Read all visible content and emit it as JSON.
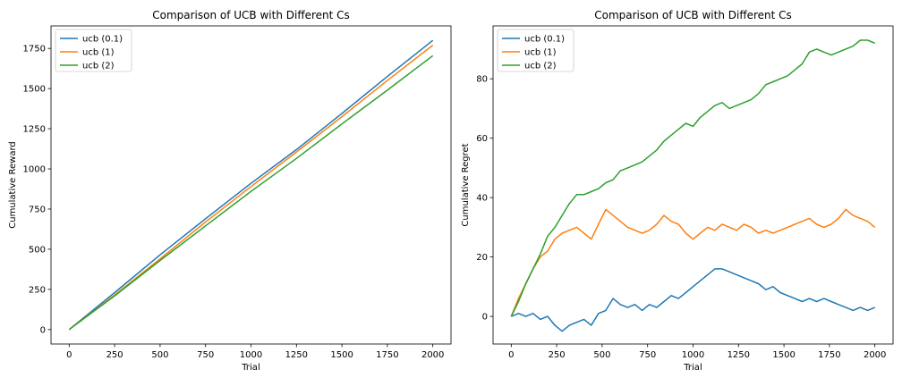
{
  "chart_data": [
    {
      "type": "line",
      "title": "Comparison of UCB with Different Cs",
      "xlabel": "Trial",
      "ylabel": "Cumulative Reward",
      "xlim": [
        -100,
        2100
      ],
      "ylim": [
        -90,
        1890
      ],
      "xticks": [
        0,
        250,
        500,
        750,
        1000,
        1250,
        1500,
        1750,
        2000
      ],
      "yticks": [
        0,
        250,
        500,
        750,
        1000,
        1250,
        1500,
        1750
      ],
      "legend_location": "upper left",
      "grid": false,
      "series": [
        {
          "name": "ucb (0.1)",
          "color": "#1f77b4",
          "x": [
            0,
            250,
            500,
            750,
            1000,
            1250,
            1500,
            1750,
            2000
          ],
          "y": [
            0,
            230,
            465,
            690,
            910,
            1120,
            1345,
            1575,
            1800
          ]
        },
        {
          "name": "ucb (1)",
          "color": "#ff7f0e",
          "x": [
            0,
            250,
            500,
            750,
            1000,
            1250,
            1500,
            1750,
            2000
          ],
          "y": [
            0,
            215,
            440,
            670,
            890,
            1105,
            1325,
            1550,
            1770
          ]
        },
        {
          "name": "ucb (2)",
          "color": "#2ca02c",
          "x": [
            0,
            250,
            500,
            750,
            1000,
            1250,
            1500,
            1750,
            2000
          ],
          "y": [
            0,
            210,
            430,
            645,
            860,
            1065,
            1280,
            1490,
            1705
          ]
        }
      ]
    },
    {
      "type": "line",
      "title": "Comparison of UCB with Different Cs",
      "xlabel": "Trial",
      "ylabel": "Cumulative Regret",
      "xlim": [
        -100,
        2100
      ],
      "ylim": [
        -9.3,
        97.8
      ],
      "xticks": [
        0,
        250,
        500,
        750,
        1000,
        1250,
        1500,
        1750,
        2000
      ],
      "yticks": [
        0,
        20,
        40,
        60,
        80
      ],
      "legend_location": "upper left",
      "grid": false,
      "series": [
        {
          "name": "ucb (0.1)",
          "color": "#1f77b4",
          "x": [
            0,
            40,
            80,
            120,
            160,
            200,
            240,
            280,
            320,
            360,
            400,
            440,
            480,
            520,
            560,
            600,
            640,
            680,
            720,
            760,
            800,
            840,
            880,
            920,
            960,
            1000,
            1040,
            1080,
            1120,
            1160,
            1200,
            1240,
            1280,
            1320,
            1360,
            1400,
            1440,
            1480,
            1520,
            1560,
            1600,
            1640,
            1680,
            1720,
            1760,
            1800,
            1840,
            1880,
            1920,
            1960,
            2000
          ],
          "y": [
            0,
            1,
            0,
            1,
            -1,
            0,
            -3,
            -5,
            -3,
            -2,
            -1,
            -3,
            1,
            2,
            6,
            4,
            3,
            4,
            2,
            4,
            3,
            5,
            7,
            6,
            8,
            10,
            12,
            14,
            16,
            16,
            15,
            14,
            13,
            12,
            11,
            9,
            10,
            8,
            7,
            6,
            5,
            6,
            5,
            6,
            5,
            4,
            3,
            2,
            3,
            2,
            3
          ]
        },
        {
          "name": "ucb (1)",
          "color": "#ff7f0e",
          "x": [
            0,
            40,
            80,
            120,
            160,
            200,
            240,
            280,
            320,
            360,
            400,
            440,
            480,
            520,
            560,
            600,
            640,
            680,
            720,
            760,
            800,
            840,
            880,
            920,
            960,
            1000,
            1040,
            1080,
            1120,
            1160,
            1200,
            1240,
            1280,
            1320,
            1360,
            1400,
            1440,
            1480,
            1520,
            1560,
            1600,
            1640,
            1680,
            1720,
            1760,
            1800,
            1840,
            1880,
            1920,
            1960,
            2000
          ],
          "y": [
            0,
            6,
            11,
            16,
            20,
            22,
            26,
            28,
            29,
            30,
            28,
            26,
            31,
            36,
            34,
            32,
            30,
            29,
            28,
            29,
            31,
            34,
            32,
            31,
            28,
            26,
            28,
            30,
            29,
            31,
            30,
            29,
            31,
            30,
            28,
            29,
            28,
            29,
            30,
            31,
            32,
            33,
            31,
            30,
            31,
            33,
            36,
            34,
            33,
            32,
            30
          ]
        },
        {
          "name": "ucb (2)",
          "color": "#2ca02c",
          "x": [
            0,
            40,
            80,
            120,
            160,
            200,
            240,
            280,
            320,
            360,
            400,
            440,
            480,
            520,
            560,
            600,
            640,
            680,
            720,
            760,
            800,
            840,
            880,
            920,
            960,
            1000,
            1040,
            1080,
            1120,
            1160,
            1200,
            1240,
            1280,
            1320,
            1360,
            1400,
            1440,
            1480,
            1520,
            1560,
            1600,
            1640,
            1680,
            1720,
            1760,
            1800,
            1840,
            1880,
            1920,
            1960,
            2000
          ],
          "y": [
            0,
            5,
            11,
            16,
            21,
            27,
            30,
            34,
            38,
            41,
            41,
            42,
            43,
            45,
            46,
            49,
            50,
            51,
            52,
            54,
            56,
            59,
            61,
            63,
            65,
            64,
            67,
            69,
            71,
            72,
            70,
            71,
            72,
            73,
            75,
            78,
            79,
            80,
            81,
            83,
            85,
            89,
            90,
            89,
            88,
            89,
            90,
            91,
            93,
            93,
            92
          ]
        }
      ]
    }
  ]
}
